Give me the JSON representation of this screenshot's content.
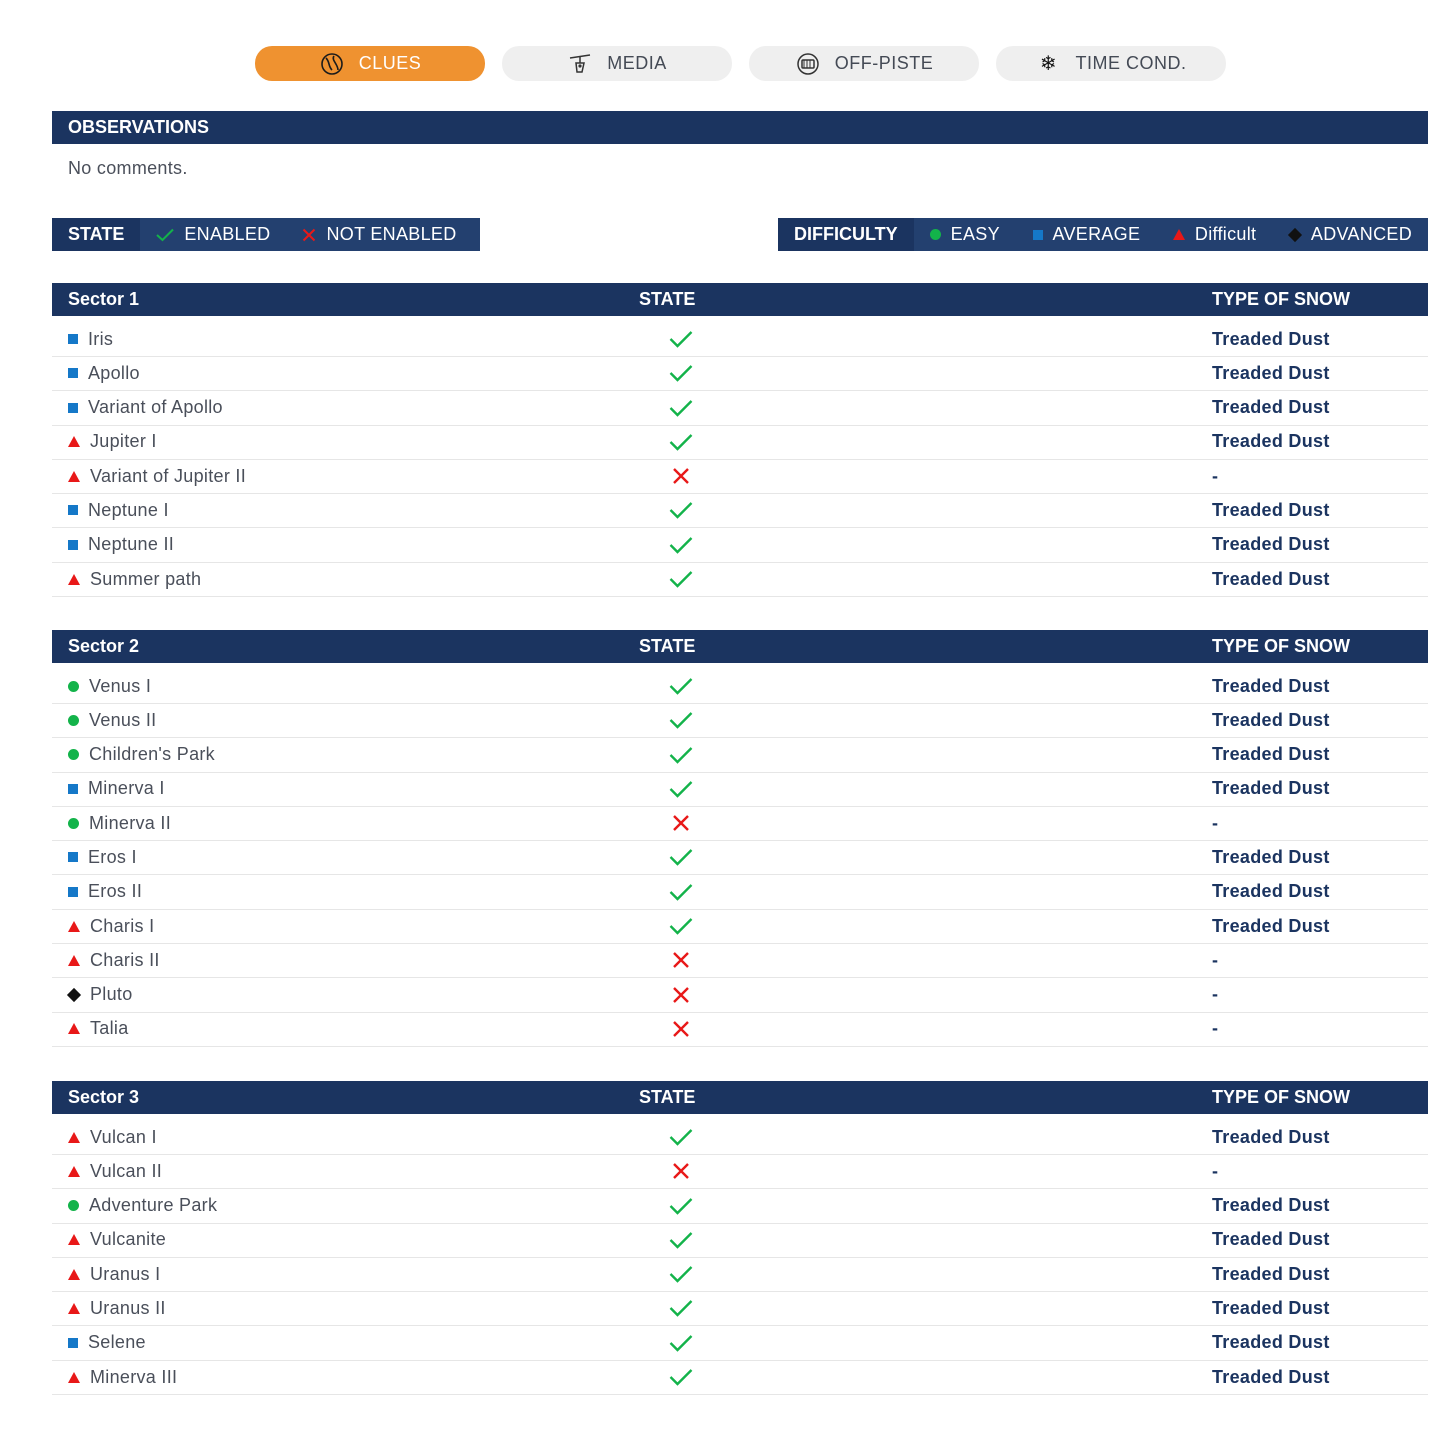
{
  "tabs": [
    {
      "label": "CLUES",
      "icon": "clues-icon",
      "active": true
    },
    {
      "label": "MEDIA",
      "icon": "ski-lift-icon",
      "active": false
    },
    {
      "label": "OFF-PISTE",
      "icon": "off-piste-icon",
      "active": false
    },
    {
      "label": "TIME COND.",
      "icon": "snowflake-icon",
      "active": false
    }
  ],
  "observations": {
    "title": "OBSERVATIONS",
    "text": "No comments."
  },
  "state_legend": {
    "title": "STATE",
    "enabled": "ENABLED",
    "not_enabled": "NOT ENABLED"
  },
  "difficulty_legend": {
    "title": "DIFFICULTY",
    "easy": "EASY",
    "average": "AVERAGE",
    "difficult": "Difficult",
    "advanced": "ADVANCED"
  },
  "colors": {
    "navy": "#1b3460",
    "orange": "#ef9230",
    "green": "#13b34a",
    "red": "#e81818",
    "blue": "#1578c8",
    "black": "#111111"
  },
  "sectors": [
    {
      "name": "Sector 1",
      "state_header": "STATE",
      "snow_header": "TYPE OF SNOW",
      "rows": [
        {
          "name": "Iris",
          "difficulty": "average",
          "enabled": true,
          "snow": "Treaded Dust"
        },
        {
          "name": "Apollo",
          "difficulty": "average",
          "enabled": true,
          "snow": "Treaded Dust"
        },
        {
          "name": "Variant of Apollo",
          "difficulty": "average",
          "enabled": true,
          "snow": "Treaded Dust"
        },
        {
          "name": "Jupiter I",
          "difficulty": "difficult",
          "enabled": true,
          "snow": "Treaded Dust"
        },
        {
          "name": "Variant of Jupiter II",
          "difficulty": "difficult",
          "enabled": false,
          "snow": "-"
        },
        {
          "name": "Neptune I",
          "difficulty": "average",
          "enabled": true,
          "snow": "Treaded Dust"
        },
        {
          "name": "Neptune II",
          "difficulty": "average",
          "enabled": true,
          "snow": "Treaded Dust"
        },
        {
          "name": "Summer path",
          "difficulty": "difficult",
          "enabled": true,
          "snow": "Treaded Dust"
        }
      ]
    },
    {
      "name": "Sector 2",
      "state_header": "STATE",
      "snow_header": "TYPE OF SNOW",
      "rows": [
        {
          "name": "Venus I",
          "difficulty": "easy",
          "enabled": true,
          "snow": "Treaded Dust"
        },
        {
          "name": "Venus II",
          "difficulty": "easy",
          "enabled": true,
          "snow": "Treaded Dust"
        },
        {
          "name": "Children's Park",
          "difficulty": "easy",
          "enabled": true,
          "snow": "Treaded Dust"
        },
        {
          "name": "Minerva I",
          "difficulty": "average",
          "enabled": true,
          "snow": "Treaded Dust"
        },
        {
          "name": "Minerva II",
          "difficulty": "easy",
          "enabled": false,
          "snow": "-"
        },
        {
          "name": "Eros I",
          "difficulty": "average",
          "enabled": true,
          "snow": "Treaded Dust"
        },
        {
          "name": "Eros II",
          "difficulty": "average",
          "enabled": true,
          "snow": "Treaded Dust"
        },
        {
          "name": "Charis I",
          "difficulty": "difficult",
          "enabled": true,
          "snow": "Treaded Dust"
        },
        {
          "name": "Charis II",
          "difficulty": "difficult",
          "enabled": false,
          "snow": "-"
        },
        {
          "name": "Pluto",
          "difficulty": "advanced",
          "enabled": false,
          "snow": "-"
        },
        {
          "name": "Talia",
          "difficulty": "difficult",
          "enabled": false,
          "snow": "-"
        }
      ]
    },
    {
      "name": "Sector 3",
      "state_header": "STATE",
      "snow_header": "TYPE OF SNOW",
      "rows": [
        {
          "name": "Vulcan I",
          "difficulty": "difficult",
          "enabled": true,
          "snow": "Treaded Dust"
        },
        {
          "name": "Vulcan II",
          "difficulty": "difficult",
          "enabled": false,
          "snow": "-"
        },
        {
          "name": "Adventure Park",
          "difficulty": "easy",
          "enabled": true,
          "snow": "Treaded Dust"
        },
        {
          "name": "Vulcanite",
          "difficulty": "difficult",
          "enabled": true,
          "snow": "Treaded Dust"
        },
        {
          "name": "Uranus I",
          "difficulty": "difficult",
          "enabled": true,
          "snow": "Treaded Dust"
        },
        {
          "name": "Uranus II",
          "difficulty": "difficult",
          "enabled": true,
          "snow": "Treaded Dust"
        },
        {
          "name": "Selene",
          "difficulty": "average",
          "enabled": true,
          "snow": "Treaded Dust"
        },
        {
          "name": "Minerva III",
          "difficulty": "difficult",
          "enabled": true,
          "snow": "Treaded Dust"
        }
      ]
    }
  ]
}
